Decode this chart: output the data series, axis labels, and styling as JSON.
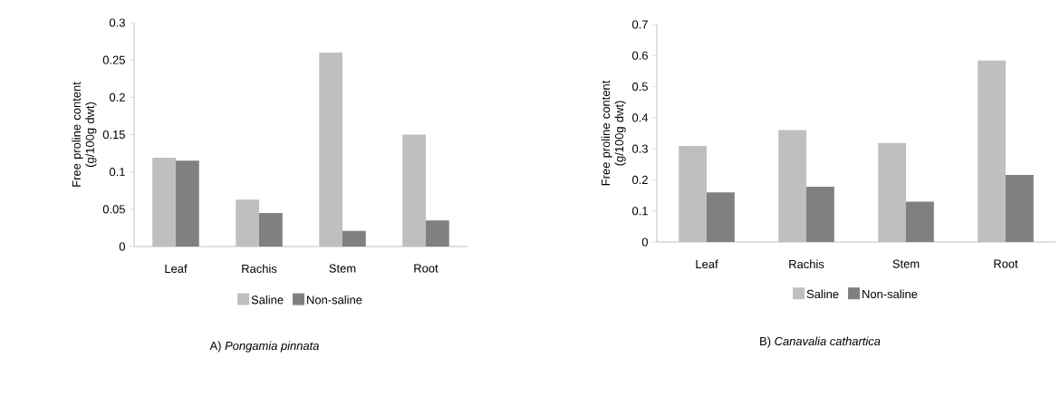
{
  "chart_data": [
    {
      "type": "bar",
      "categories": [
        "Leaf",
        "Rachis",
        "Stem",
        "Root"
      ],
      "ylabel": "Free proline content (g/100g dwt)",
      "series": [
        {
          "name": "Saline",
          "color": "#bfbfbf",
          "values": [
            0.119,
            0.063,
            0.26,
            0.15
          ]
        },
        {
          "name": "Non-saline",
          "color": "#808080",
          "values": [
            0.115,
            0.045,
            0.021,
            0.035
          ]
        }
      ],
      "ylim": [
        0,
        0.3
      ],
      "yticks": [
        0,
        0.05,
        0.1,
        0.15,
        0.2,
        0.25,
        0.3
      ],
      "legend": "bottom",
      "grid": false,
      "annotations": [
        "A) *Pongamia pinnata*"
      ]
    },
    {
      "type": "bar",
      "categories": [
        "Leaf",
        "Rachis",
        "Stem",
        "Root"
      ],
      "ylabel": "Free proline content (g/100g dwt)",
      "series": [
        {
          "name": "Saline",
          "color": "#bfbfbf",
          "values": [
            0.309,
            0.36,
            0.319,
            0.584
          ]
        },
        {
          "name": "Non-saline",
          "color": "#808080",
          "values": [
            0.16,
            0.178,
            0.13,
            0.216
          ]
        }
      ],
      "ylim": [
        0,
        0.7
      ],
      "yticks": [
        0,
        0.1,
        0.2,
        0.3,
        0.4,
        0.5,
        0.6,
        0.7
      ],
      "legend": "bottom",
      "grid": false,
      "annotations": [
        "B) *Canavalia cathartica*"
      ]
    }
  ]
}
